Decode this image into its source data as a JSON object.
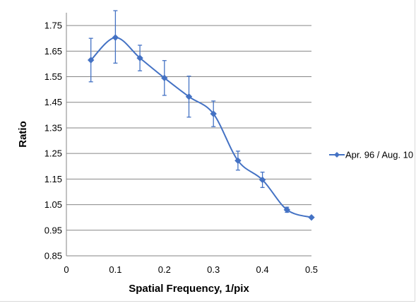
{
  "chart_data": {
    "type": "scatter",
    "title": "",
    "xlabel": "Spatial Frequency, 1/pix",
    "ylabel": "Ratio",
    "xlim": [
      0,
      0.5
    ],
    "ylim": [
      0.85,
      1.8
    ],
    "x_ticks": [
      "0",
      "0.1",
      "0.2",
      "0.3",
      "0.4",
      "0.5"
    ],
    "y_ticks": [
      "0.85",
      "0.95",
      "1.05",
      "1.15",
      "1.25",
      "1.35",
      "1.45",
      "1.55",
      "1.65",
      "1.75"
    ],
    "grid": "horizontal",
    "smoothed_line": true,
    "legend_position": "right",
    "color": "#4472c4",
    "series": [
      {
        "name": "Apr. 96 / Aug. 10",
        "x": [
          0.05,
          0.1,
          0.15,
          0.2,
          0.25,
          0.3,
          0.35,
          0.4,
          0.45,
          0.5
        ],
        "y": [
          1.615,
          1.703,
          1.623,
          1.545,
          1.472,
          1.405,
          1.222,
          1.147,
          1.03,
          1.0
        ],
        "error_plus": [
          0.085,
          0.105,
          0.05,
          0.068,
          0.08,
          0.05,
          0.037,
          0.03,
          0.01,
          0.0
        ],
        "error_minus": [
          0.085,
          0.1,
          0.05,
          0.068,
          0.08,
          0.05,
          0.037,
          0.03,
          0.01,
          0.0
        ]
      }
    ]
  }
}
